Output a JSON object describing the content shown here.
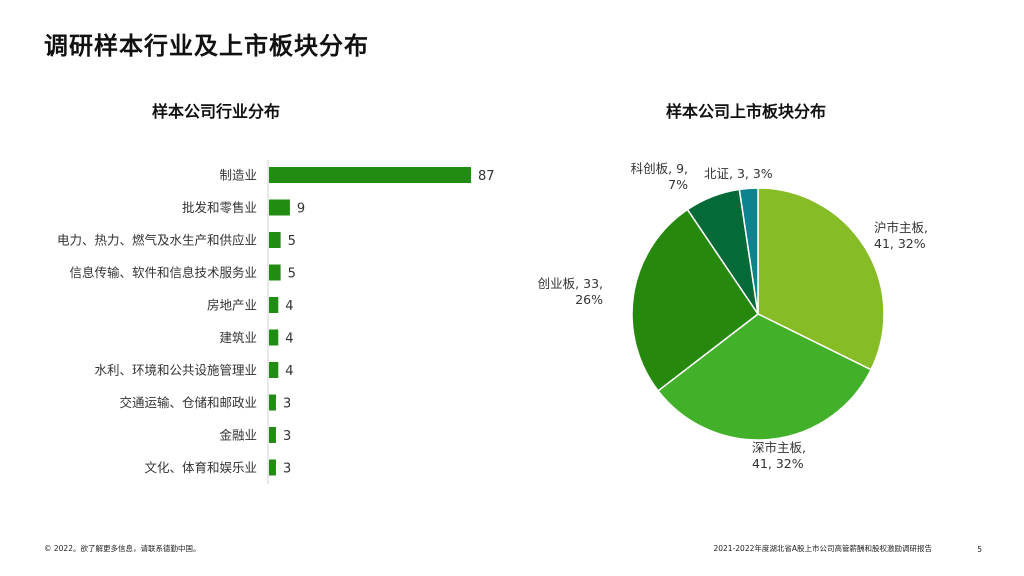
{
  "page": {
    "title": "调研样本行业及上市板块分布",
    "footer_left": "© 2022。欲了解更多信息，请联系德勤中国。",
    "footer_right": "2021-2022年度湖北省A股上市公司高管薪酬和股权激励调研报告",
    "page_number": "5"
  },
  "chart_data": [
    {
      "type": "bar",
      "orientation": "horizontal",
      "title": "样本公司行业分布",
      "categories": [
        "制造业",
        "批发和零售业",
        "电力、热力、燃气及水生产和供应业",
        "信息传输、软件和信息技术服务业",
        "房地产业",
        "建筑业",
        "水利、环境和公共设施管理业",
        "交通运输、仓储和邮政业",
        "金融业",
        "文化、体育和娱乐业"
      ],
      "values": [
        87,
        9,
        5,
        5,
        4,
        4,
        4,
        3,
        3,
        3
      ],
      "data_labels": [
        "87",
        "9",
        "5",
        "5",
        "4",
        "4",
        "4",
        "3",
        "3",
        "3"
      ],
      "color": "#228b13"
    },
    {
      "type": "pie",
      "title": "样本公司上市板块分布",
      "slices": [
        {
          "label": "沪市主板",
          "value": 41,
          "percent": 32,
          "color": "#86bc25",
          "text": [
            "沪市主板,",
            "41, 32%"
          ]
        },
        {
          "label": "深市主板",
          "value": 41,
          "percent": 32,
          "color": "#43b02a",
          "text": [
            "深市主板,",
            "41, 32%"
          ]
        },
        {
          "label": "创业板",
          "value": 33,
          "percent": 26,
          "color": "#26890d",
          "text": [
            "创业板, 33,",
            "26%"
          ]
        },
        {
          "label": "科创板",
          "value": 9,
          "percent": 7,
          "color": "#046a38",
          "text": [
            "科创板, 9,",
            "7%"
          ]
        },
        {
          "label": "北证",
          "value": 3,
          "percent": 3,
          "color": "#0d8390",
          "text": [
            "北证, 3, 3%"
          ]
        }
      ]
    }
  ]
}
